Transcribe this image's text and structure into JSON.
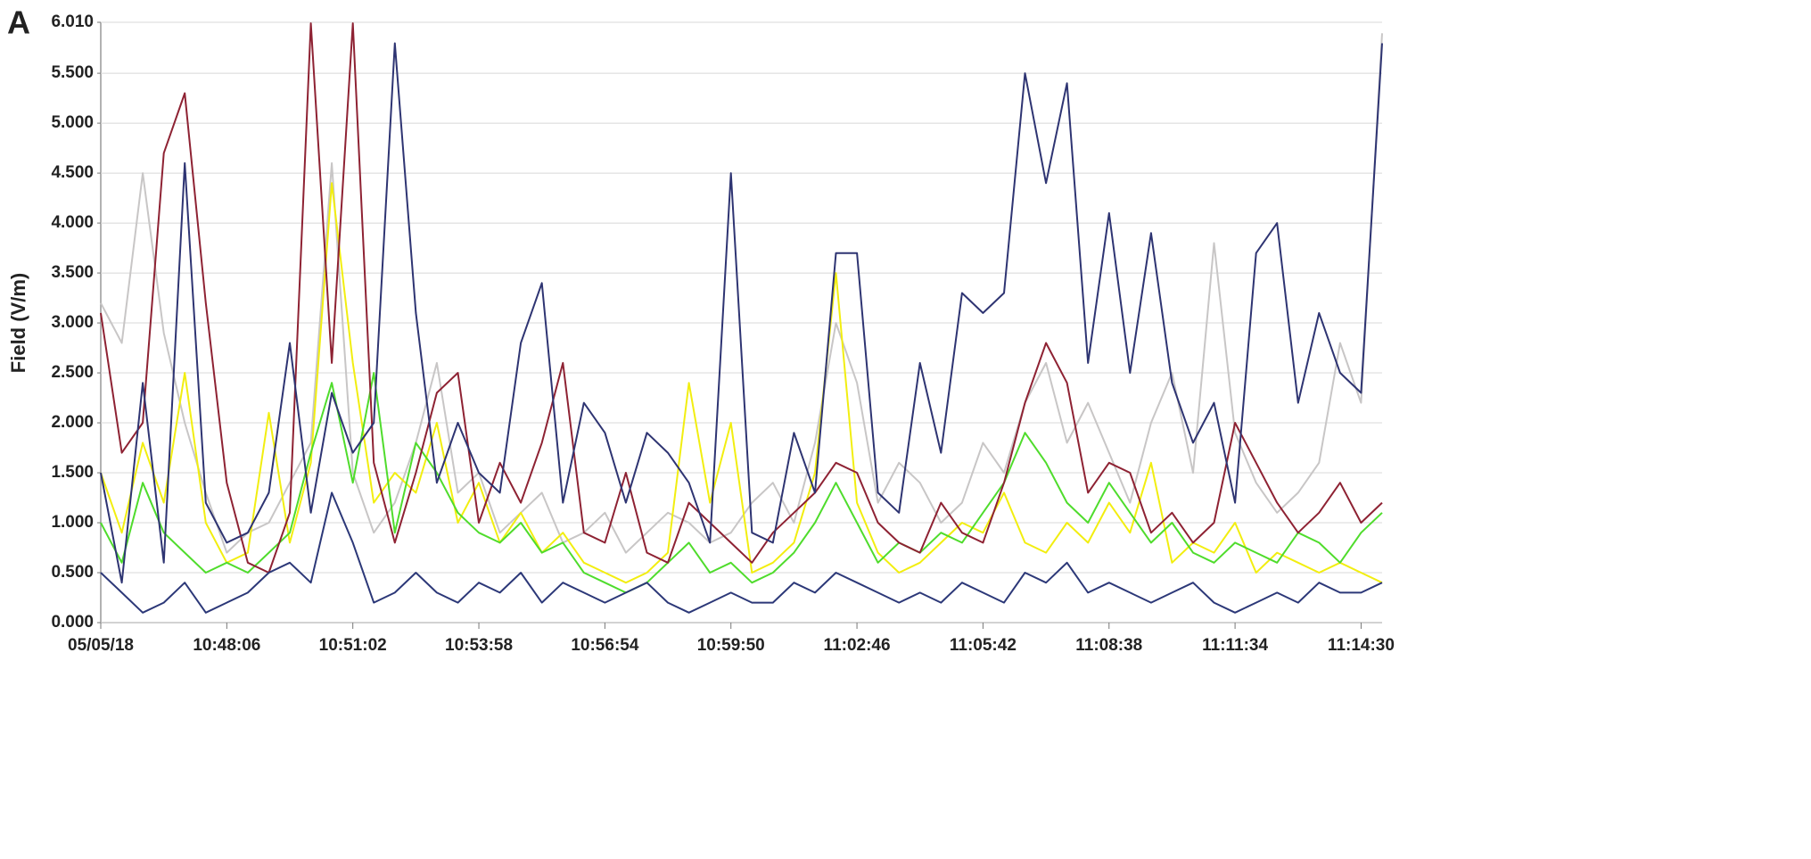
{
  "chart_data": {
    "type": "line",
    "title": "A",
    "y_label": "Field (V/m)",
    "ylim": [
      0,
      6.01
    ],
    "yticks": [
      {
        "value": 0,
        "label": "0.000"
      },
      {
        "value": 0.5,
        "label": "0.500"
      },
      {
        "value": 1,
        "label": "1.000"
      },
      {
        "value": 1.5,
        "label": "1.500"
      },
      {
        "value": 2,
        "label": "2.000"
      },
      {
        "value": 2.5,
        "label": "2.500"
      },
      {
        "value": 3,
        "label": "3.000"
      },
      {
        "value": 3.5,
        "label": "3.500"
      },
      {
        "value": 4,
        "label": "4.000"
      },
      {
        "value": 4.5,
        "label": "4.500"
      },
      {
        "value": 5,
        "label": "5.000"
      },
      {
        "value": 5.5,
        "label": "5.500"
      },
      {
        "value": 6.01,
        "label": "6.010"
      }
    ],
    "xlim": [
      0,
      61
    ],
    "xticks": [
      {
        "value": 0,
        "label": "05/05/18"
      },
      {
        "value": 6,
        "label": "10:48:06"
      },
      {
        "value": 12,
        "label": "10:51:02"
      },
      {
        "value": 18,
        "label": "10:53:58"
      },
      {
        "value": 24,
        "label": "10:56:54"
      },
      {
        "value": 30,
        "label": "10:59:50"
      },
      {
        "value": 36,
        "label": "11:02:46"
      },
      {
        "value": 42,
        "label": "11:05:42"
      },
      {
        "value": 48,
        "label": "11:08:38"
      },
      {
        "value": 54,
        "label": "11:11:34"
      },
      {
        "value": 60,
        "label": "11:14:30"
      }
    ],
    "grid": true,
    "series": [
      {
        "color": "#c8c6c6",
        "values": [
          3.2,
          2.8,
          4.5,
          2.9,
          2.0,
          1.3,
          0.7,
          0.9,
          1.0,
          1.4,
          1.8,
          4.6,
          1.5,
          0.9,
          1.2,
          1.8,
          2.6,
          1.3,
          1.5,
          0.9,
          1.1,
          1.3,
          0.8,
          0.9,
          1.1,
          0.7,
          0.9,
          1.1,
          1.0,
          0.8,
          0.9,
          1.2,
          1.4,
          1.0,
          1.8,
          3.0,
          2.4,
          1.2,
          1.6,
          1.4,
          1.0,
          1.2,
          1.8,
          1.5,
          2.2,
          2.6,
          1.8,
          2.2,
          1.7,
          1.2,
          2.0,
          2.5,
          1.5,
          3.8,
          1.9,
          1.4,
          1.1,
          1.3,
          1.6,
          2.8,
          2.2,
          5.9
        ]
      },
      {
        "color": "#f2ee10",
        "values": [
          1.5,
          0.9,
          1.8,
          1.2,
          2.5,
          1.0,
          0.6,
          0.7,
          2.1,
          0.8,
          1.6,
          4.4,
          2.6,
          1.2,
          1.5,
          1.3,
          2.0,
          1.0,
          1.4,
          0.8,
          1.1,
          0.7,
          0.9,
          0.6,
          0.5,
          0.4,
          0.5,
          0.7,
          2.4,
          1.2,
          2.0,
          0.5,
          0.6,
          0.8,
          1.5,
          3.5,
          1.2,
          0.7,
          0.5,
          0.6,
          0.8,
          1.0,
          0.9,
          1.3,
          0.8,
          0.7,
          1.0,
          0.8,
          1.2,
          0.9,
          1.6,
          0.6,
          0.8,
          0.7,
          1.0,
          0.5,
          0.7,
          0.6,
          0.5,
          0.6,
          0.5,
          0.4
        ]
      },
      {
        "color": "#4fdc2c",
        "values": [
          1.0,
          0.6,
          1.4,
          0.9,
          0.7,
          0.5,
          0.6,
          0.5,
          0.7,
          0.9,
          1.7,
          2.4,
          1.4,
          2.5,
          0.9,
          1.8,
          1.5,
          1.1,
          0.9,
          0.8,
          1.0,
          0.7,
          0.8,
          0.5,
          0.4,
          0.3,
          0.4,
          0.6,
          0.8,
          0.5,
          0.6,
          0.4,
          0.5,
          0.7,
          1.0,
          1.4,
          1.0,
          0.6,
          0.8,
          0.7,
          0.9,
          0.8,
          1.1,
          1.4,
          1.9,
          1.6,
          1.2,
          1.0,
          1.4,
          1.1,
          0.8,
          1.0,
          0.7,
          0.6,
          0.8,
          0.7,
          0.6,
          0.9,
          0.8,
          0.6,
          0.9,
          1.1
        ]
      },
      {
        "color": "#8e2233",
        "values": [
          3.1,
          1.7,
          2.0,
          4.7,
          5.3,
          3.2,
          1.4,
          0.6,
          0.5,
          1.1,
          6.0,
          2.6,
          6.0,
          1.6,
          0.8,
          1.5,
          2.3,
          2.5,
          1.0,
          1.6,
          1.2,
          1.8,
          2.6,
          0.9,
          0.8,
          1.5,
          0.7,
          0.6,
          1.2,
          1.0,
          0.8,
          0.6,
          0.9,
          1.1,
          1.3,
          1.6,
          1.5,
          1.0,
          0.8,
          0.7,
          1.2,
          0.9,
          0.8,
          1.4,
          2.2,
          2.8,
          2.4,
          1.3,
          1.6,
          1.5,
          0.9,
          1.1,
          0.8,
          1.0,
          2.0,
          1.6,
          1.2,
          0.9,
          1.1,
          1.4,
          1.0,
          1.2
        ]
      },
      {
        "color": "#2c3878",
        "values": [
          0.5,
          0.3,
          0.1,
          0.2,
          0.4,
          0.1,
          0.2,
          0.3,
          0.5,
          0.6,
          0.4,
          1.3,
          0.8,
          0.2,
          0.3,
          0.5,
          0.3,
          0.2,
          0.4,
          0.3,
          0.5,
          0.2,
          0.4,
          0.3,
          0.2,
          0.3,
          0.4,
          0.2,
          0.1,
          0.2,
          0.3,
          0.2,
          0.2,
          0.4,
          0.3,
          0.5,
          0.4,
          0.3,
          0.2,
          0.3,
          0.2,
          0.4,
          0.3,
          0.2,
          0.5,
          0.4,
          0.6,
          0.3,
          0.4,
          0.3,
          0.2,
          0.3,
          0.4,
          0.2,
          0.1,
          0.2,
          0.3,
          0.2,
          0.4,
          0.3,
          0.3,
          0.4
        ]
      },
      {
        "color": "#2e3472",
        "values": [
          1.5,
          0.4,
          2.4,
          0.6,
          4.6,
          1.2,
          0.8,
          0.9,
          1.3,
          2.8,
          1.1,
          2.3,
          1.7,
          2.0,
          5.8,
          3.1,
          1.4,
          2.0,
          1.5,
          1.3,
          2.8,
          3.4,
          1.2,
          2.2,
          1.9,
          1.2,
          1.9,
          1.7,
          1.4,
          0.8,
          4.5,
          0.9,
          0.8,
          1.9,
          1.3,
          3.7,
          3.7,
          1.3,
          1.1,
          2.6,
          1.7,
          3.3,
          3.1,
          3.3,
          5.5,
          4.4,
          5.4,
          2.6,
          4.1,
          2.5,
          3.9,
          2.4,
          1.8,
          2.2,
          1.2,
          3.7,
          4.0,
          2.2,
          3.1,
          2.5,
          2.3,
          5.8
        ]
      }
    ]
  }
}
